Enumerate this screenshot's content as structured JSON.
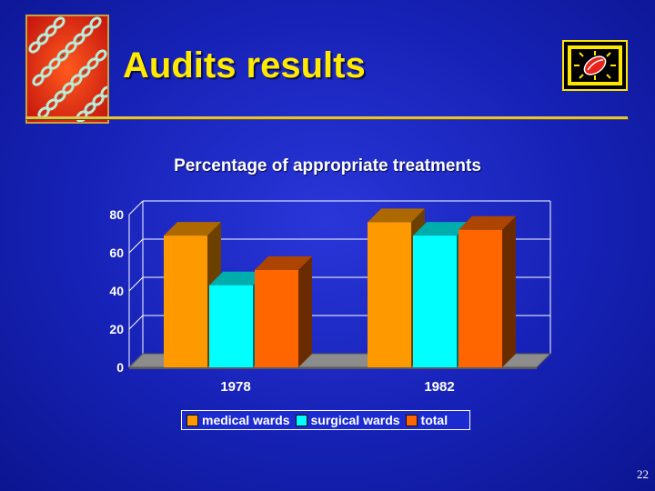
{
  "slide": {
    "title": "Audits results",
    "page_number": "22"
  },
  "colors": {
    "background": "#1a26c4",
    "title": "#ffea00",
    "rule": "#e0c24a",
    "medical_wards": "#ff9900",
    "surgical_wards": "#00ffff",
    "total": "#ff6600"
  },
  "icons": {
    "logo": "bacteria-chain-image",
    "corner": "framed-pill-clipart"
  },
  "chart_data": {
    "type": "bar",
    "title": "Percentage of appropriate treatments",
    "categories": [
      "1978",
      "1982"
    ],
    "series": [
      {
        "name": "medical wards",
        "values": [
          69,
          76
        ]
      },
      {
        "name": "surgical wards",
        "values": [
          43,
          69
        ]
      },
      {
        "name": "total",
        "values": [
          51,
          72
        ]
      }
    ],
    "ylim": [
      0,
      80
    ],
    "yticks": [
      "0",
      "20",
      "40",
      "60",
      "80"
    ],
    "grid": true,
    "legend": "bottom",
    "style": "3d"
  }
}
